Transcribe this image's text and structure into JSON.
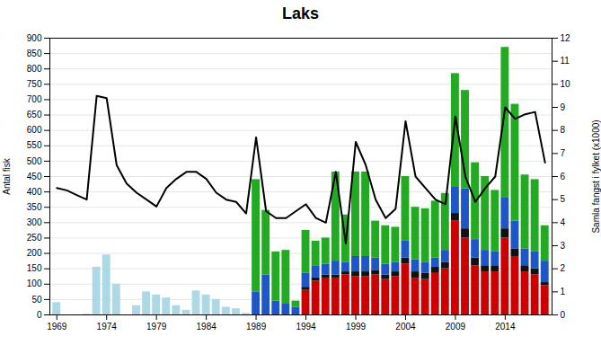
{
  "chart_data": {
    "type": "bar",
    "title": "Laks",
    "ylabel": "Antal fisk",
    "y2label": "Samla fangst i fylket (x1000)",
    "x": [
      1969,
      1970,
      1971,
      1972,
      1973,
      1974,
      1975,
      1976,
      1977,
      1978,
      1979,
      1980,
      1981,
      1982,
      1983,
      1984,
      1985,
      1986,
      1987,
      1988,
      1989,
      1990,
      1991,
      1992,
      1993,
      1994,
      1995,
      1996,
      1997,
      1998,
      1999,
      2000,
      2001,
      2002,
      2003,
      2004,
      2005,
      2006,
      2007,
      2008,
      2009,
      2010,
      2011,
      2012,
      2013,
      2014,
      2015,
      2016,
      2017,
      2018
    ],
    "series": [
      {
        "color": "#ADD8E6",
        "values": [
          40,
          0,
          0,
          2,
          155,
          195,
          100,
          0,
          30,
          75,
          65,
          55,
          30,
          15,
          78,
          65,
          50,
          25,
          20,
          5,
          0,
          0,
          0,
          0,
          0,
          0,
          0,
          0,
          0,
          0,
          0,
          0,
          0,
          0,
          0,
          0,
          0,
          0,
          0,
          0,
          0,
          0,
          0,
          0,
          0,
          0,
          0,
          0,
          0,
          0
        ]
      },
      {
        "color": "#CC0000",
        "values": [
          0,
          0,
          0,
          0,
          0,
          0,
          0,
          0,
          0,
          0,
          0,
          0,
          0,
          0,
          0,
          0,
          0,
          0,
          0,
          0,
          0,
          0,
          0,
          0,
          0,
          80,
          110,
          120,
          120,
          130,
          125,
          125,
          130,
          115,
          125,
          165,
          120,
          115,
          135,
          150,
          305,
          250,
          160,
          140,
          140,
          250,
          190,
          140,
          130,
          95
        ]
      },
      {
        "color": "#111111",
        "values": [
          0,
          0,
          0,
          0,
          0,
          0,
          0,
          0,
          0,
          0,
          0,
          0,
          0,
          0,
          0,
          0,
          0,
          0,
          0,
          0,
          0,
          0,
          0,
          0,
          0,
          10,
          10,
          10,
          10,
          10,
          15,
          15,
          15,
          15,
          15,
          20,
          20,
          20,
          20,
          20,
          25,
          30,
          25,
          20,
          20,
          30,
          25,
          20,
          20,
          10
        ]
      },
      {
        "color": "#1E56C8",
        "values": [
          0,
          0,
          0,
          0,
          0,
          0,
          0,
          0,
          0,
          0,
          0,
          0,
          0,
          0,
          0,
          0,
          0,
          0,
          0,
          0,
          75,
          130,
          45,
          35,
          25,
          45,
          40,
          35,
          45,
          30,
          50,
          50,
          40,
          35,
          30,
          55,
          40,
          35,
          30,
          40,
          85,
          130,
          60,
          50,
          45,
          100,
          90,
          55,
          55,
          70
        ]
      },
      {
        "color": "#22AA22",
        "values": [
          0,
          0,
          0,
          0,
          0,
          0,
          0,
          0,
          0,
          0,
          0,
          0,
          0,
          0,
          0,
          0,
          0,
          0,
          0,
          0,
          365,
          210,
          160,
          175,
          20,
          140,
          80,
          85,
          290,
          155,
          275,
          275,
          120,
          125,
          115,
          210,
          170,
          175,
          185,
          185,
          370,
          320,
          250,
          240,
          200,
          490,
          380,
          240,
          235,
          115
        ]
      },
      {
        "type": "line",
        "axis": "y2",
        "color": "#000000",
        "values": [
          5.5,
          5.4,
          5.2,
          5.0,
          9.5,
          9.4,
          6.5,
          5.7,
          5.3,
          5.0,
          4.7,
          5.5,
          5.9,
          6.2,
          6.2,
          5.9,
          5.3,
          5.0,
          4.9,
          4.4,
          7.7,
          4.5,
          4.2,
          4.2,
          4.5,
          4.8,
          4.2,
          4.0,
          6.2,
          3.1,
          7.5,
          6.5,
          5.0,
          4.2,
          4.6,
          8.4,
          6.0,
          5.5,
          5.0,
          4.8,
          8.6,
          6.0,
          4.9,
          5.5,
          6.0,
          9.0,
          8.5,
          8.7,
          8.8,
          6.6
        ]
      }
    ],
    "stacked": true,
    "xlim": [
      1968.3,
      2018.7
    ],
    "xticks": [
      1969,
      1974,
      1979,
      1984,
      1989,
      1994,
      1999,
      2004,
      2009,
      2014
    ],
    "ylim": [
      0,
      900
    ],
    "yticks": [
      0,
      50,
      100,
      150,
      200,
      250,
      300,
      350,
      400,
      450,
      500,
      550,
      600,
      650,
      700,
      750,
      800,
      850,
      900
    ],
    "y2lim": [
      0,
      12
    ],
    "y2ticks": [
      0,
      1,
      2,
      3,
      4,
      5,
      6,
      7,
      8,
      9,
      10,
      11,
      12
    ],
    "grid": true
  }
}
